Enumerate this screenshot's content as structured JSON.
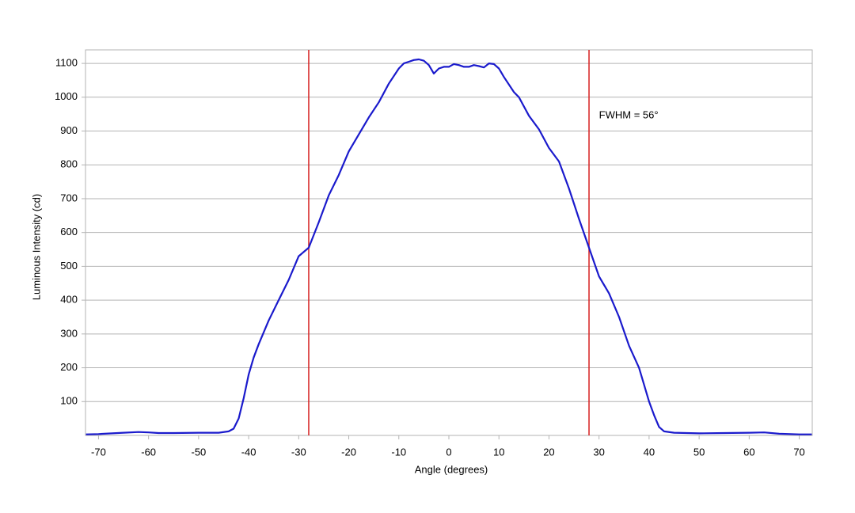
{
  "chart_data": {
    "type": "line",
    "xlabel": "Angle (degrees)",
    "ylabel": "Luminous Intensity (cd)",
    "annotation": {
      "text": "FWHM = 56°",
      "x": 30,
      "y": 945
    },
    "vlines": {
      "x": [
        -28,
        28
      ],
      "color": "#d62020"
    },
    "xlim": [
      -72.6,
      72.6
    ],
    "ylim": [
      0,
      1140
    ],
    "xticks": [
      -70,
      -60,
      -50,
      -40,
      -30,
      -20,
      -10,
      0,
      10,
      20,
      30,
      40,
      50,
      60,
      70
    ],
    "yticks": [
      100,
      200,
      300,
      400,
      500,
      600,
      700,
      800,
      900,
      1000,
      1100
    ],
    "grid": true,
    "series": [
      {
        "color": "#1a1acc",
        "x": [
          -72.5,
          -70,
          -65,
          -62,
          -60,
          -58,
          -55,
          -50,
          -46,
          -44,
          -43,
          -42,
          -41,
          -40,
          -39,
          -38,
          -36,
          -34,
          -32,
          -30,
          -28,
          -26,
          -24,
          -22,
          -20,
          -18,
          -16,
          -14,
          -12,
          -10,
          -9,
          -8,
          -7,
          -6,
          -5,
          -4,
          -3,
          -2,
          -1,
          0,
          1,
          2,
          3,
          4,
          5,
          6,
          7,
          8,
          9,
          10,
          11,
          13,
          14,
          16,
          18,
          20,
          22,
          24,
          26,
          28,
          30,
          32,
          34,
          36,
          38,
          40,
          41,
          42,
          43,
          45,
          50,
          55,
          60,
          63,
          66,
          70,
          72.5
        ],
        "values": [
          3,
          4,
          8,
          10,
          9,
          7,
          7,
          8,
          8,
          12,
          20,
          50,
          110,
          180,
          230,
          270,
          340,
          400,
          460,
          530,
          555,
          630,
          710,
          770,
          840,
          890,
          940,
          985,
          1040,
          1085,
          1100,
          1105,
          1110,
          1112,
          1108,
          1095,
          1070,
          1085,
          1090,
          1090,
          1098,
          1095,
          1090,
          1090,
          1095,
          1092,
          1088,
          1100,
          1098,
          1085,
          1060,
          1015,
          1000,
          945,
          905,
          850,
          810,
          730,
          640,
          555,
          470,
          420,
          350,
          265,
          200,
          100,
          60,
          25,
          12,
          8,
          6,
          7,
          8,
          9,
          5,
          3,
          3
        ]
      }
    ]
  }
}
